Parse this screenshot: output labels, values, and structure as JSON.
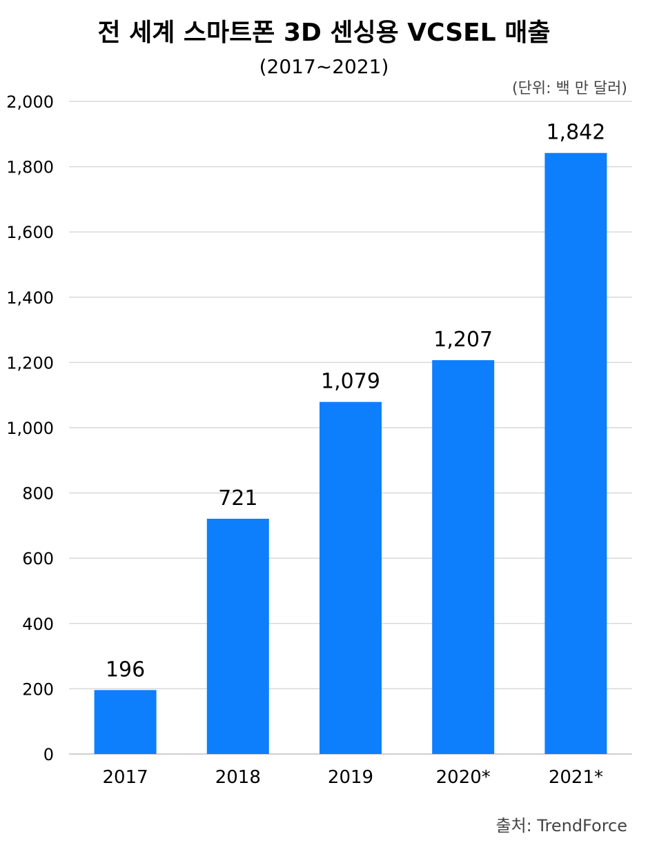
{
  "title": "전 세계 스마트폰 3D 센싱용 VCSEL 매출",
  "subtitle": "(2017~2021)",
  "unit_note": "(단위: 백 만 달러)",
  "source_note": "출처: TrendForce",
  "colors": {
    "bar": "#0e7ffc",
    "grid": "#d9d9d9",
    "axis": "#bfbfbf",
    "text": "#000000"
  },
  "chart_data": {
    "type": "bar",
    "title": "전 세계 스마트폰 3D 센싱용 VCSEL 매출",
    "subtitle": "(2017~2021)",
    "categories": [
      "2017",
      "2018",
      "2019",
      "2020*",
      "2021*"
    ],
    "values": [
      196,
      721,
      1079,
      1207,
      1842
    ],
    "data_labels": [
      "196",
      "721",
      "1,079",
      "1,207",
      "1,842"
    ],
    "y_ticks": [
      0,
      200,
      400,
      600,
      800,
      1000,
      1200,
      1400,
      1600,
      1800,
      2000
    ],
    "y_tick_labels": [
      "0",
      "200",
      "400",
      "600",
      "800",
      "1,000",
      "1,200",
      "1,400",
      "1,600",
      "1,800",
      "2,000"
    ],
    "ylim": [
      0,
      2000
    ],
    "grid": true,
    "legend": "none"
  }
}
